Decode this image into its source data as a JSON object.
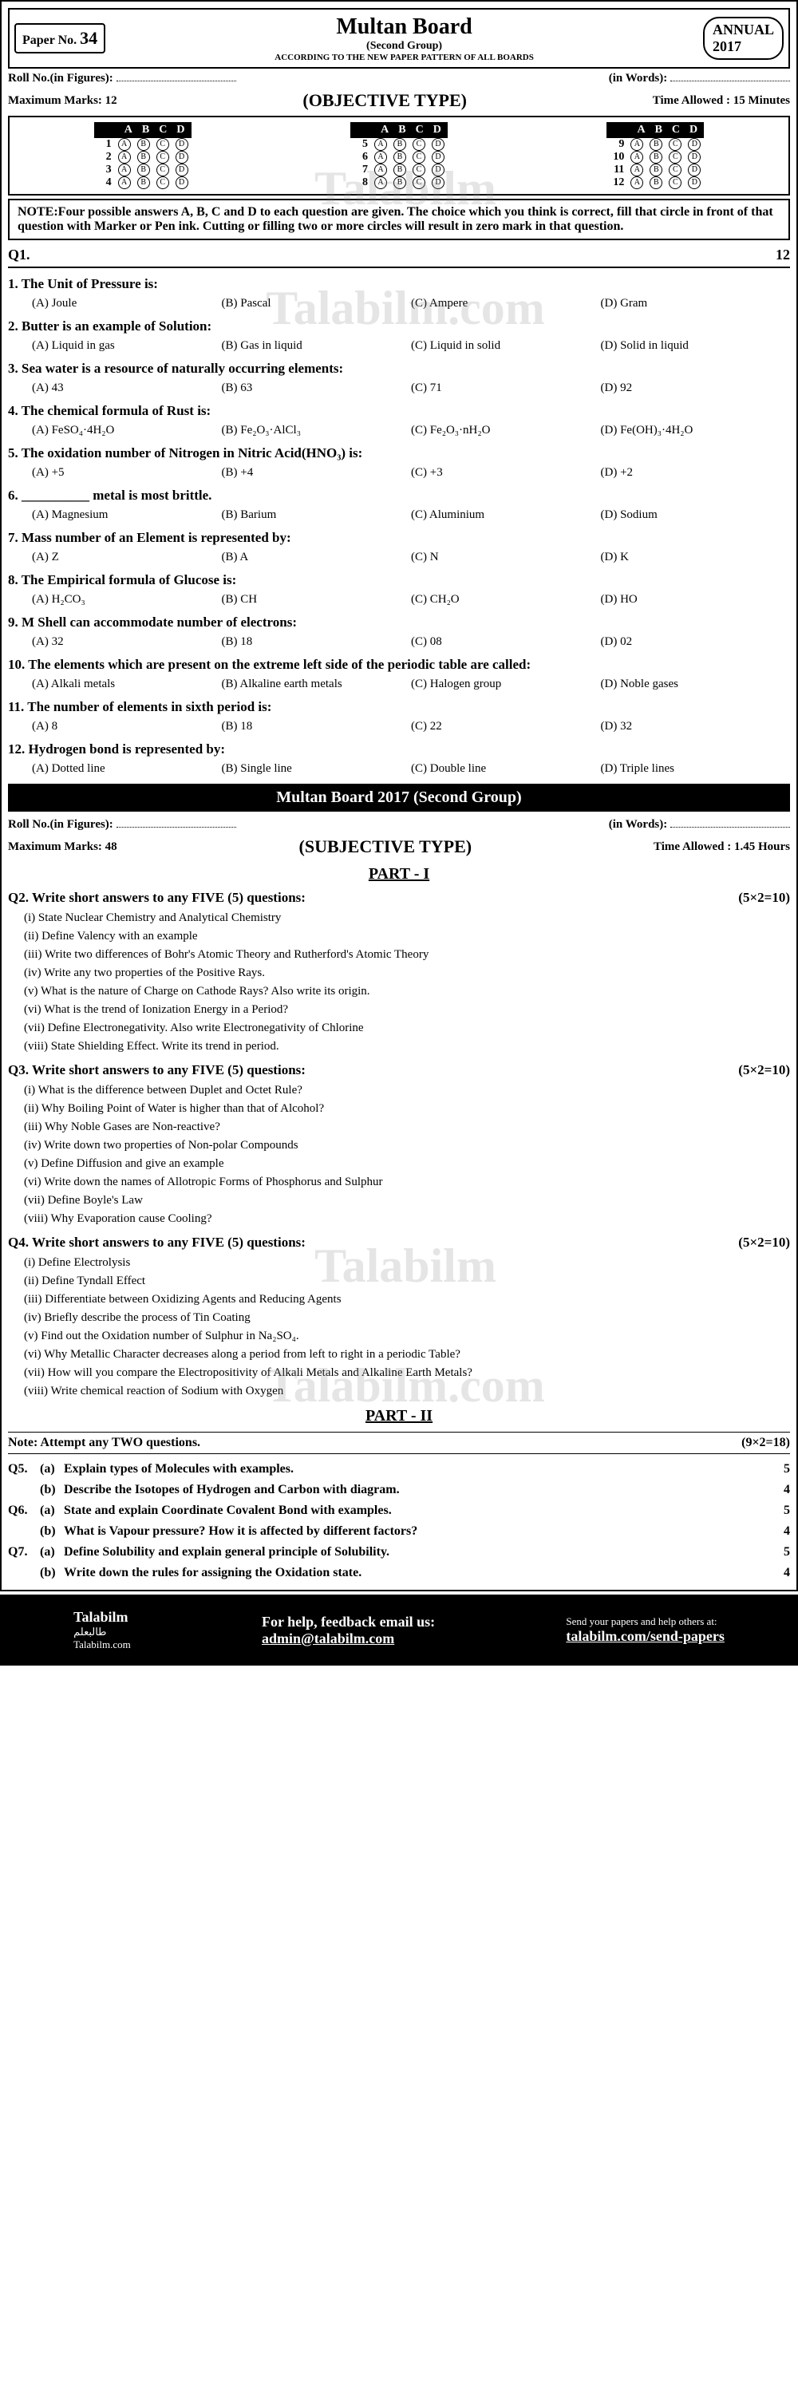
{
  "header": {
    "paper_no_label": "Paper No.",
    "paper_no": "34",
    "board": "Multan Board",
    "group": "(Second Group)",
    "pattern": "ACCORDING TO THE NEW PAPER PATTERN OF ALL BOARDS",
    "annual": "ANNUAL",
    "year": "2017"
  },
  "roll": {
    "figures_label": "Roll No.(in Figures):",
    "words_label": "(in Words):"
  },
  "objective": {
    "max_marks_label": "Maximum Marks:",
    "max_marks": "12",
    "title": "(OBJECTIVE TYPE)",
    "time_label": "Time Allowed :",
    "time": "15 Minutes",
    "omr_letters": [
      "A",
      "B",
      "C",
      "D"
    ],
    "omr_groups": [
      [
        1,
        2,
        3,
        4
      ],
      [
        5,
        6,
        7,
        8
      ],
      [
        9,
        10,
        11,
        12
      ]
    ],
    "note": "NOTE:Four possible answers A, B, C and D to each question are given. The choice which you think is correct, fill that circle in front of that question with Marker or Pen ink. Cutting or filling two or more circles will result in zero mark in that question.",
    "q_label": "Q1.",
    "q_marks": "12"
  },
  "mcqs": [
    {
      "n": "1.",
      "text": "The Unit of Pressure is:",
      "opts": [
        "(A) Joule",
        "(B) Pascal",
        "(C) Ampere",
        "(D) Gram"
      ]
    },
    {
      "n": "2.",
      "text": "Butter is an example of Solution:",
      "opts": [
        "(A) Liquid in gas",
        "(B) Gas in liquid",
        "(C) Liquid in solid",
        "(D) Solid in liquid"
      ]
    },
    {
      "n": "3.",
      "text": "Sea water is a resource of naturally occurring elements:",
      "opts": [
        "(A) 43",
        "(B) 63",
        "(C) 71",
        "(D) 92"
      ]
    },
    {
      "n": "4.",
      "text": "The chemical formula of Rust is:",
      "opts": [
        "(A) FeSO₄·4H₂O",
        "(B) Fe₂O₃·AlCl₃",
        "(C) Fe₂O₃·nH₂O",
        "(D) Fe(OH)₃·4H₂O"
      ]
    },
    {
      "n": "5.",
      "text": "The oxidation number of Nitrogen in Nitric Acid(HNO₃) is:",
      "opts": [
        "(A) +5",
        "(B) +4",
        "(C) +3",
        "(D) +2"
      ]
    },
    {
      "n": "6.",
      "text": "__________ metal is most brittle.",
      "opts": [
        "(A) Magnesium",
        "(B) Barium",
        "(C) Aluminium",
        "(D) Sodium"
      ]
    },
    {
      "n": "7.",
      "text": "Mass number of an Element is represented by:",
      "opts": [
        "(A) Z",
        "(B) A",
        "(C) N",
        "(D) K"
      ]
    },
    {
      "n": "8.",
      "text": "The Empirical formula of Glucose is:",
      "opts": [
        "(A) H₂CO₃",
        "(B) CH",
        "(C) CH₂O",
        "(D) HO"
      ]
    },
    {
      "n": "9.",
      "text": "M Shell can accommodate number of electrons:",
      "opts": [
        "(A) 32",
        "(B) 18",
        "(C) 08",
        "(D) 02"
      ]
    },
    {
      "n": "10.",
      "text": "The elements which are present on the extreme left side of the periodic table are called:",
      "opts": [
        "(A) Alkali metals",
        "(B) Alkaline earth metals",
        "(C) Halogen group",
        "(D) Noble gases"
      ]
    },
    {
      "n": "11.",
      "text": "The number of elements in sixth period is:",
      "opts": [
        "(A) 8",
        "(B) 18",
        "(C) 22",
        "(D) 32"
      ]
    },
    {
      "n": "12.",
      "text": "Hydrogen bond is represented by:",
      "opts": [
        "(A) Dotted line",
        "(B) Single line",
        "(C) Double line",
        "(D) Triple lines"
      ]
    }
  ],
  "subjective": {
    "banner": "Multan Board 2017 (Second Group)",
    "max_marks_label": "Maximum Marks:",
    "max_marks": "48",
    "title": "(SUBJECTIVE TYPE)",
    "time_label": "Time Allowed :",
    "time": "1.45 Hours",
    "part1": "PART - I",
    "part2": "PART - II",
    "q2": {
      "label": "Q2.",
      "text": "Write short answers to any FIVE (5) questions:",
      "marks": "(5×2=10)"
    },
    "q2_items": [
      "(i) State Nuclear Chemistry and Analytical Chemistry",
      "(ii) Define Valency with an example",
      "(iii) Write two differences of Bohr's Atomic Theory and Rutherford's Atomic Theory",
      "(iv) Write any two properties of the Positive Rays.",
      "(v) What is the nature of Charge on Cathode Rays? Also write its origin.",
      "(vi) What is the trend of Ionization Energy in a Period?",
      "(vii) Define Electronegativity. Also write Electronegativity of Chlorine",
      "(viii) State Shielding Effect. Write its trend in period."
    ],
    "q3": {
      "label": "Q3.",
      "text": "Write short answers to any FIVE (5) questions:",
      "marks": "(5×2=10)"
    },
    "q3_items": [
      "(i) What is the difference between Duplet and Octet Rule?",
      "(ii) Why Boiling Point of Water is higher than that of Alcohol?",
      "(iii) Why Noble Gases are Non-reactive?",
      "(iv) Write down two properties of Non-polar Compounds",
      "(v) Define Diffusion and give an example",
      "(vi) Write down the names of Allotropic Forms of Phosphorus and Sulphur",
      "(vii) Define Boyle's Law",
      "(viii) Why Evaporation cause Cooling?"
    ],
    "q4": {
      "label": "Q4.",
      "text": "Write short answers to any FIVE (5) questions:",
      "marks": "(5×2=10)"
    },
    "q4_items": [
      "(i) Define Electrolysis",
      "(ii) Define Tyndall Effect",
      "(iii) Differentiate between Oxidizing Agents and Reducing Agents",
      "(iv) Briefly describe the process of Tin Coating",
      "(v) Find out the Oxidation number of Sulphur in Na₂SO₄.",
      "(vi) Why Metallic Character decreases along a period from left to right in a periodic Table?",
      "(vii) How will you compare the Electropositivity of Alkali Metals and Alkaline Earth Metals?",
      "(viii) Write chemical reaction of Sodium with Oxygen"
    ],
    "note2": "Note: Attempt any TWO questions.",
    "note2_marks": "(9×2=18)",
    "long_qs": [
      {
        "n": "Q5.",
        "p": "(a)",
        "t": "Explain types of Molecules with examples.",
        "m": "5"
      },
      {
        "n": "",
        "p": "(b)",
        "t": "Describe the Isotopes of Hydrogen and Carbon with diagram.",
        "m": "4"
      },
      {
        "n": "Q6.",
        "p": "(a)",
        "t": "State and explain Coordinate Covalent Bond with examples.",
        "m": "5"
      },
      {
        "n": "",
        "p": "(b)",
        "t": "What is Vapour pressure? How it is affected by different factors?",
        "m": "4"
      },
      {
        "n": "Q7.",
        "p": "(a)",
        "t": "Define Solubility and explain general principle of Solubility.",
        "m": "5"
      },
      {
        "n": "",
        "p": "(b)",
        "t": "Write down the rules for assigning the Oxidation state.",
        "m": "4"
      }
    ]
  },
  "footer": {
    "brand": "Talabilm",
    "brand_ar": "طالبعلم",
    "site": "Talabilm.com",
    "help_label": "For help, feedback email us:",
    "email": "admin@talabilm.com",
    "send_label": "Send your papers and help others at:",
    "send_link": "talabilm.com/send-papers"
  },
  "watermarks": {
    "text1": "Talabilm",
    "text2": "Talabilm.com",
    "arabic": "طالبعلم"
  }
}
